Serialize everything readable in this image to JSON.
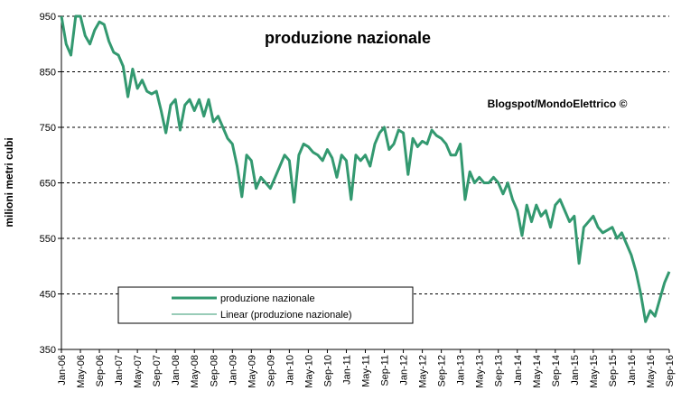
{
  "chart_data": {
    "type": "line",
    "title": "produzione nazionale",
    "annotation": "Blogspot/MondoElettrico ©",
    "y_label": "milioni metri cubi",
    "categories": [
      "Jan-06",
      null,
      null,
      null,
      "May-06",
      null,
      null,
      null,
      "Sep-06",
      null,
      null,
      null,
      "Jan-07",
      null,
      null,
      null,
      "May-07",
      null,
      null,
      null,
      "Sep-07",
      null,
      null,
      null,
      "Jan-08",
      null,
      null,
      null,
      "May-08",
      null,
      null,
      null,
      "Sep-08",
      null,
      null,
      null,
      "Jan-09",
      null,
      null,
      null,
      "May-09",
      null,
      null,
      null,
      "Sep-09",
      null,
      null,
      null,
      "Jan-10",
      null,
      null,
      null,
      "May-10",
      null,
      null,
      null,
      "Sep-10",
      null,
      null,
      null,
      "Jan-11",
      null,
      null,
      null,
      "May-11",
      null,
      null,
      null,
      "Sep-11",
      null,
      null,
      null,
      "Jan-12",
      null,
      null,
      null,
      "May-12",
      null,
      null,
      null,
      "Sep-12",
      null,
      null,
      null,
      "Jan-13",
      null,
      null,
      null,
      "May-13",
      null,
      null,
      null,
      "Sep-13",
      null,
      null,
      null,
      "Jan-14",
      null,
      null,
      null,
      "May-14",
      null,
      null,
      null,
      "Sep-14",
      null,
      null,
      null,
      "Jan-15",
      null,
      null,
      null,
      "May-15",
      null,
      null,
      null,
      "Sep-15",
      null,
      null,
      null,
      "Jan-16",
      null,
      null,
      null,
      "May-16",
      null,
      null,
      null,
      "Sep-16"
    ],
    "series": [
      {
        "name": "produzione nazionale",
        "color": "#339970",
        "values": [
          950,
          900,
          880,
          950,
          950,
          915,
          900,
          925,
          940,
          935,
          905,
          885,
          880,
          860,
          805,
          855,
          820,
          835,
          815,
          810,
          815,
          780,
          740,
          790,
          800,
          745,
          790,
          800,
          780,
          800,
          770,
          800,
          760,
          770,
          750,
          730,
          720,
          680,
          625,
          700,
          690,
          640,
          660,
          650,
          640,
          660,
          680,
          700,
          690,
          615,
          700,
          720,
          715,
          705,
          700,
          690,
          710,
          695,
          660,
          700,
          690,
          620,
          700,
          690,
          700,
          680,
          720,
          740,
          750,
          710,
          720,
          745,
          740,
          665,
          730,
          715,
          725,
          720,
          745,
          735,
          730,
          720,
          700,
          700,
          720,
          620,
          670,
          650,
          660,
          650,
          650,
          660,
          650,
          630,
          650,
          620,
          600,
          555,
          610,
          580,
          610,
          590,
          600,
          570,
          610,
          620,
          600,
          580,
          590,
          505,
          570,
          580,
          590,
          570,
          560,
          565,
          570,
          550,
          560,
          540,
          520,
          490,
          450,
          400,
          420,
          410,
          440,
          470,
          490
        ]
      }
    ],
    "trendline": {
      "name": "Linear (produzione nazionale)",
      "color": "#339970"
    },
    "ylim": [
      350,
      950
    ],
    "yticks": [
      350,
      450,
      550,
      650,
      750,
      850,
      950
    ],
    "grid": true
  }
}
